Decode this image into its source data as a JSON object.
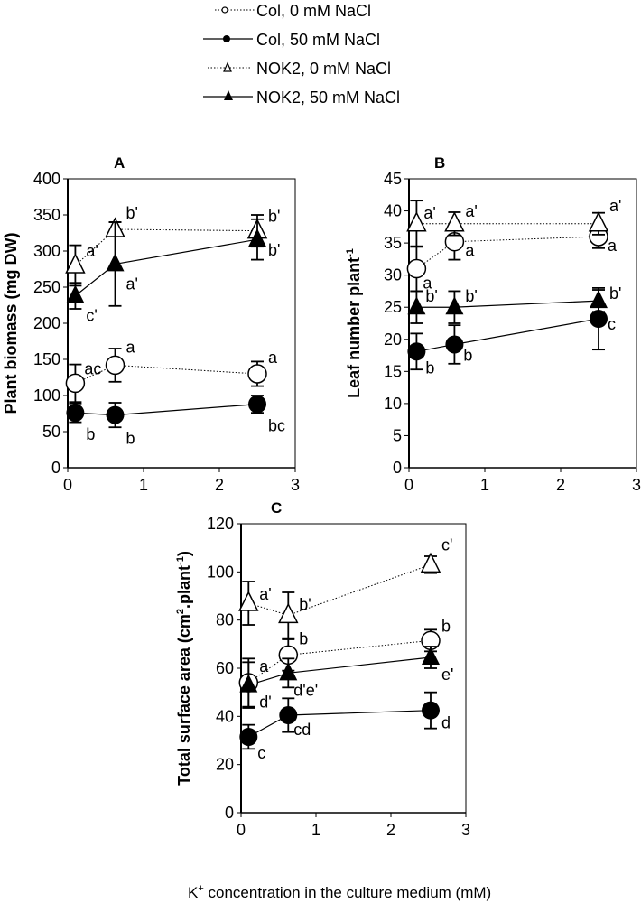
{
  "figure": {
    "xlabel": "K⁺ concentration in the culture medium (mM)",
    "xlabel_parts": {
      "base": "K",
      "sup": "+",
      "rest": " concentration in the culture medium (mM)"
    }
  },
  "legend": {
    "placement": "top-center",
    "items": [
      {
        "label": "Col, 0 mM NaCl",
        "marker": "open-circle",
        "line": "dotted"
      },
      {
        "label": "Col, 50 mM NaCl",
        "marker": "filled-circle",
        "line": "solid"
      },
      {
        "label": "NOK2, 0 mM NaCl",
        "marker": "open-triangle",
        "line": "dotted"
      },
      {
        "label": "NOK2, 50 mM NaCl",
        "marker": "filled-triangle",
        "line": "solid"
      }
    ]
  },
  "chart_data": [
    {
      "type": "line",
      "panel": "A",
      "title": "A",
      "ylabel": "Plant biomass (mg DW)",
      "xlabel": "",
      "xlim": [
        0,
        3
      ],
      "ylim": [
        0,
        400
      ],
      "xticks": [
        0,
        1,
        2,
        3
      ],
      "yticks": [
        0,
        50,
        100,
        150,
        200,
        250,
        300,
        350,
        400
      ],
      "grid": false,
      "x": [
        0.1,
        0.625,
        2.5
      ],
      "series": [
        {
          "name": "Col, 0 mM NaCl",
          "marker": "open-circle",
          "line": "dotted",
          "values": [
            117,
            142,
            130
          ],
          "err": [
            26,
            23,
            17
          ],
          "labels": [
            "ac",
            "a",
            "a"
          ]
        },
        {
          "name": "Col, 50 mM NaCl",
          "marker": "filled-circle",
          "line": "solid",
          "values": [
            76,
            73,
            88
          ],
          "err": [
            13,
            17,
            12
          ],
          "labels": [
            "b",
            "b",
            "bc"
          ]
        },
        {
          "name": "NOK2, 0 mM NaCl",
          "marker": "open-triangle",
          "line": "dotted",
          "values": [
            280,
            330,
            328
          ],
          "err": [
            28,
            10,
            22
          ],
          "labels": [
            "a'",
            "b'",
            "b'"
          ]
        },
        {
          "name": "NOK2, 50 mM NaCl",
          "marker": "filled-triangle",
          "line": "solid",
          "values": [
            238,
            282,
            316
          ],
          "err": [
            18,
            58,
            28
          ],
          "labels": [
            "c'",
            "a'",
            "b'"
          ]
        }
      ]
    },
    {
      "type": "line",
      "panel": "B",
      "title": "B",
      "ylabel": "Leaf number plant⁻¹",
      "ylabel_parts": {
        "base": "Leaf number plant",
        "sup": "-1"
      },
      "xlabel": "",
      "xlim": [
        0,
        3
      ],
      "ylim": [
        0,
        45
      ],
      "xticks": [
        0,
        1,
        2,
        3
      ],
      "yticks": [
        0,
        5,
        10,
        15,
        20,
        25,
        30,
        35,
        40,
        45
      ],
      "grid": false,
      "x": [
        0.1,
        0.6,
        2.5
      ],
      "series": [
        {
          "name": "Col, 0 mM NaCl",
          "marker": "open-circle",
          "line": "dotted",
          "values": [
            31,
            35.2,
            36
          ],
          "err": [
            3.5,
            2.8,
            1.8
          ],
          "labels": [
            "a",
            "a",
            "a"
          ]
        },
        {
          "name": "Col, 50 mM NaCl",
          "marker": "filled-circle",
          "line": "solid",
          "values": [
            18.1,
            19.2,
            23.2
          ],
          "err": [
            2.8,
            3,
            4.8
          ],
          "labels": [
            "b",
            "b",
            "c"
          ]
        },
        {
          "name": "NOK2, 0 mM NaCl",
          "marker": "open-triangle",
          "line": "dotted",
          "values": [
            38,
            38,
            38
          ],
          "err": [
            3.6,
            1.8,
            1.7
          ],
          "labels": [
            "a'",
            "a'",
            "a'"
          ]
        },
        {
          "name": "NOK2, 50 mM NaCl",
          "marker": "filled-triangle",
          "line": "solid",
          "values": [
            25,
            25,
            26
          ],
          "err": [
            2.5,
            2.5,
            1.7
          ],
          "labels": [
            "b'",
            "b'",
            "b'"
          ]
        }
      ]
    },
    {
      "type": "line",
      "panel": "C",
      "title": "C",
      "ylabel": "Total surface area (cm².plant⁻¹)",
      "ylabel_parts": {
        "a": "Total surface area (cm",
        "sup1": "2",
        "b": ".plant",
        "sup2": "-1",
        "c": ")"
      },
      "xlabel": "",
      "xlim": [
        0,
        3
      ],
      "ylim": [
        0,
        120
      ],
      "xticks": [
        0,
        1,
        2,
        3
      ],
      "yticks": [
        0,
        20,
        40,
        60,
        80,
        100,
        120
      ],
      "grid": false,
      "x": [
        0.1,
        0.63,
        2.53
      ],
      "series": [
        {
          "name": "Col, 0 mM NaCl",
          "marker": "open-circle",
          "line": "dotted",
          "values": [
            54,
            65.5,
            71.5
          ],
          "err": [
            10,
            6.5,
            4.5
          ],
          "labels": [
            "a",
            "b",
            "b"
          ]
        },
        {
          "name": "Col, 50 mM NaCl",
          "marker": "filled-circle",
          "line": "solid",
          "values": [
            31.5,
            40.5,
            42.5
          ],
          "err": [
            5,
            7,
            7.5
          ],
          "labels": [
            "c",
            "cd",
            "d"
          ]
        },
        {
          "name": "NOK2, 0 mM NaCl",
          "marker": "open-triangle",
          "line": "dotted",
          "values": [
            87,
            82,
            103
          ],
          "err": [
            9,
            9.5,
            3.5
          ],
          "labels": [
            "a'",
            "b'",
            "c'"
          ]
        },
        {
          "name": "NOK2, 50 mM NaCl",
          "marker": "filled-triangle",
          "line": "solid",
          "values": [
            53,
            58,
            64.5
          ],
          "err": [
            9.5,
            6,
            4.5
          ],
          "labels": [
            "d'",
            "d'e'",
            "e'"
          ]
        }
      ]
    }
  ]
}
